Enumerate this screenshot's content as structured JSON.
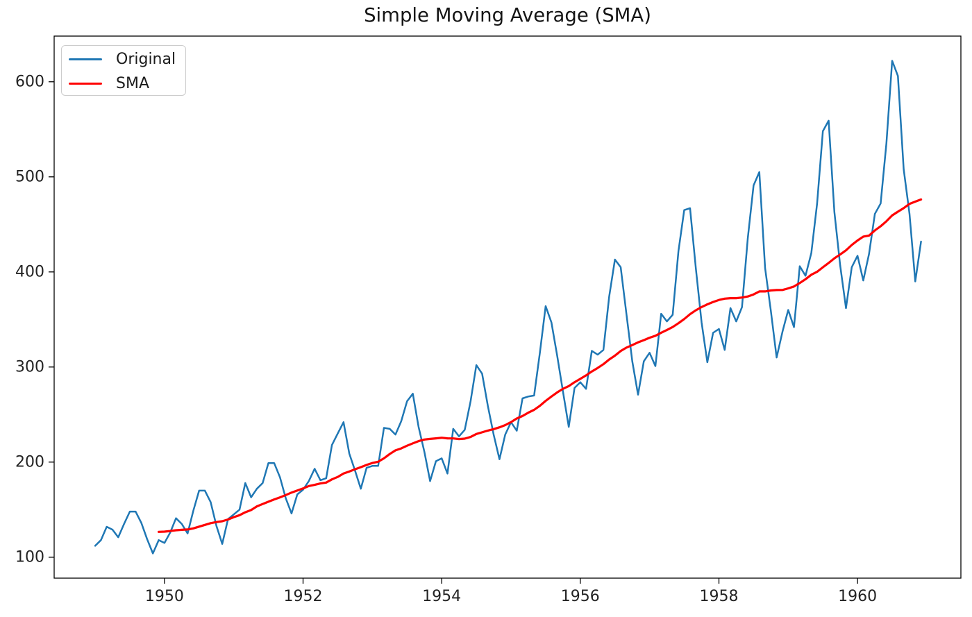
{
  "title": "Simple Moving Average (SMA)",
  "chart_data": {
    "type": "line",
    "title": "Simple Moving Average (SMA)",
    "xlabel": "",
    "ylabel": "",
    "x_unit": "month",
    "x_start": "1949-01",
    "xlim_month_index": [
      -7.1,
      149.9
    ],
    "ylim": [
      78,
      648
    ],
    "yticks": [
      100,
      200,
      300,
      400,
      500,
      600
    ],
    "xticks": [
      {
        "month_index": 12,
        "label": "1950"
      },
      {
        "month_index": 36,
        "label": "1952"
      },
      {
        "month_index": 60,
        "label": "1954"
      },
      {
        "month_index": 84,
        "label": "1956"
      },
      {
        "month_index": 108,
        "label": "1958"
      },
      {
        "month_index": 132,
        "label": "1960"
      }
    ],
    "grid": false,
    "legend": {
      "position": "upper-left",
      "entries": [
        {
          "label": "Original",
          "color": "#1f77b4"
        },
        {
          "label": "SMA",
          "color": "#ff0000"
        }
      ]
    },
    "series": [
      {
        "name": "Original",
        "color": "#1f77b4",
        "start_month_index": 0,
        "values": [
          112,
          118,
          132,
          129,
          121,
          135,
          148,
          148,
          136,
          119,
          104,
          118,
          115,
          126,
          141,
          135,
          125,
          149,
          170,
          170,
          158,
          133,
          114,
          140,
          145,
          150,
          178,
          163,
          172,
          178,
          199,
          199,
          184,
          162,
          146,
          166,
          171,
          180,
          193,
          181,
          183,
          218,
          230,
          242,
          209,
          191,
          172,
          194,
          196,
          196,
          236,
          235,
          229,
          243,
          264,
          272,
          237,
          211,
          180,
          201,
          204,
          188,
          235,
          227,
          234,
          264,
          302,
          293,
          259,
          229,
          203,
          229,
          242,
          233,
          267,
          269,
          270,
          315,
          364,
          347,
          312,
          274,
          237,
          278,
          284,
          277,
          317,
          313,
          318,
          374,
          413,
          405,
          355,
          306,
          271,
          306,
          315,
          301,
          356,
          348,
          355,
          422,
          465,
          467,
          404,
          347,
          305,
          336,
          340,
          318,
          362,
          348,
          363,
          435,
          491,
          505,
          404,
          359,
          310,
          337,
          360,
          342,
          406,
          396,
          420,
          472,
          548,
          559,
          463,
          407,
          362,
          405,
          417,
          391,
          419,
          461,
          472,
          535,
          622,
          606,
          508,
          461,
          390,
          432
        ]
      },
      {
        "name": "SMA",
        "color": "#ff0000",
        "start_month_index": 11,
        "values": [
          126.67,
          126.92,
          127.58,
          128.33,
          128.83,
          129.17,
          130.33,
          132.17,
          134.0,
          135.83,
          137.0,
          137.83,
          139.67,
          142.17,
          144.17,
          147.25,
          149.58,
          153.5,
          155.92,
          158.33,
          160.75,
          162.92,
          165.33,
          168.0,
          170.17,
          172.33,
          174.83,
          176.08,
          177.58,
          178.5,
          181.83,
          184.42,
          188.0,
          190.08,
          192.5,
          194.67,
          197.0,
          199.08,
          200.42,
          204.0,
          208.5,
          212.33,
          214.42,
          217.25,
          219.75,
          222.08,
          223.75,
          224.42,
          225.0,
          225.67,
          225.0,
          224.92,
          224.25,
          224.67,
          226.42,
          229.58,
          231.33,
          233.17,
          234.67,
          236.58,
          238.92,
          242.08,
          245.83,
          248.5,
          252.0,
          255.0,
          259.25,
          264.42,
          268.92,
          273.33,
          277.08,
          279.92,
          284.0,
          287.5,
          291.17,
          295.33,
          299.0,
          303.0,
          307.92,
          312.0,
          316.83,
          320.42,
          323.08,
          325.92,
          328.25,
          330.83,
          332.83,
          336.08,
          339.0,
          342.08,
          346.08,
          350.42,
          355.58,
          359.67,
          363.08,
          365.92,
          368.42,
          370.5,
          371.92,
          372.42,
          372.42,
          373.08,
          374.17,
          376.33,
          379.5,
          379.5,
          380.5,
          380.92,
          381.0,
          382.67,
          384.67,
          388.33,
          392.33,
          397.08,
          400.17,
          404.92,
          409.42,
          414.33,
          418.33,
          422.67,
          428.33,
          433.08,
          437.17,
          438.25,
          443.67,
          448.0,
          453.25,
          459.42,
          463.33,
          467.08,
          471.58,
          473.92,
          476.17
        ]
      }
    ]
  }
}
